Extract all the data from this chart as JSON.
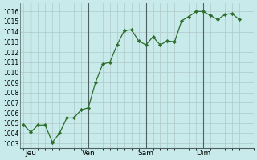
{
  "background_color": "#c8eaea",
  "grid_color": "#b0c8c8",
  "line_color": "#2d6e2d",
  "marker_color": "#2d6e2d",
  "vline_color": "#506060",
  "ylim": [
    1002.5,
    1016.8
  ],
  "yticks": [
    1003,
    1004,
    1005,
    1006,
    1007,
    1008,
    1009,
    1010,
    1011,
    1012,
    1013,
    1014,
    1015,
    1016
  ],
  "day_labels": [
    "Jeu",
    "Ven",
    "Sam",
    "Dim"
  ],
  "day_positions": [
    1,
    9,
    17,
    25
  ],
  "xlim": [
    -0.5,
    32
  ],
  "x_values": [
    0,
    1,
    2,
    3,
    4,
    5,
    6,
    7,
    8,
    9,
    10,
    11,
    12,
    13,
    14,
    15,
    16,
    17,
    18,
    19,
    20,
    21,
    22,
    23,
    24,
    25,
    26,
    27,
    28,
    29,
    30
  ],
  "y_values": [
    1004.8,
    1004.1,
    1004.8,
    1004.8,
    1003.1,
    1004.0,
    1005.5,
    1005.5,
    1006.3,
    1006.5,
    1009.0,
    1010.8,
    1011.0,
    1012.7,
    1014.1,
    1014.2,
    1013.1,
    1012.7,
    1013.5,
    1012.7,
    1013.1,
    1013.0,
    1015.1,
    1015.5,
    1016.0,
    1016.0,
    1015.6,
    1015.2,
    1015.7,
    1015.8,
    1015.2
  ]
}
